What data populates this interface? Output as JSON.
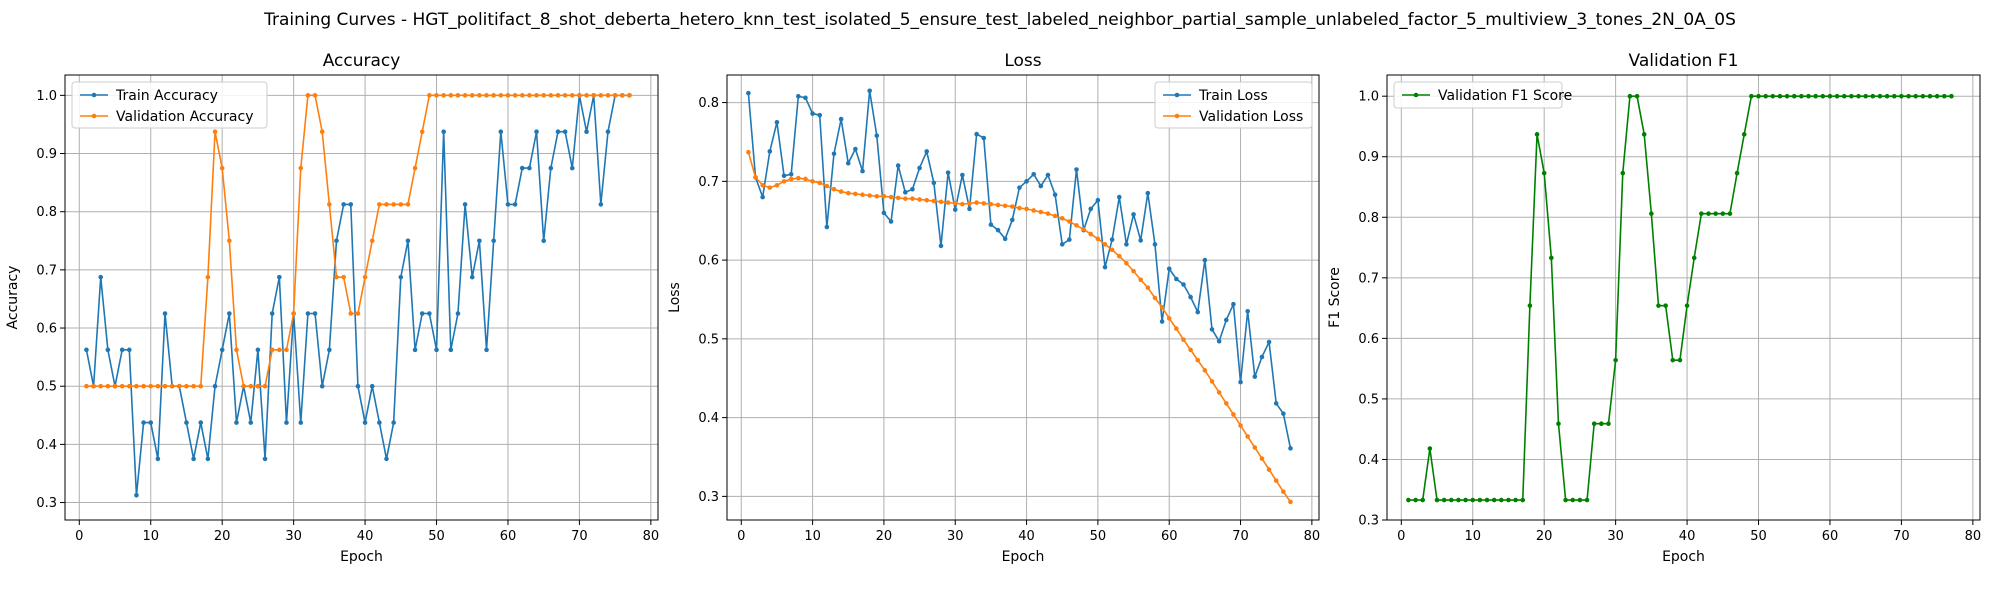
{
  "figure": {
    "suptitle": "Training Curves - HGT_politifact_8_shot_deberta_hetero_knn_test_isolated_5_ensure_test_labeled_neighbor_partial_sample_unlabeled_factor_5_multiview_3_tones_2N_0A_0S"
  },
  "chart_data": [
    {
      "type": "line",
      "title": "Accuracy",
      "xlabel": "Epoch",
      "ylabel": "Accuracy",
      "xlim": [
        -2,
        81
      ],
      "ylim": [
        0.27,
        1.035
      ],
      "xticks": [
        0,
        10,
        20,
        30,
        40,
        50,
        60,
        70,
        80
      ],
      "yticks": [
        0.3,
        0.4,
        0.5,
        0.6,
        0.7,
        0.8,
        0.9,
        1.0
      ],
      "ytick_labels": [
        "0.3",
        "0.4",
        "0.5",
        "0.6",
        "0.7",
        "0.8",
        "0.9",
        "1.0"
      ],
      "grid": true,
      "legend_position": "upper-left",
      "x": [
        1,
        2,
        3,
        4,
        5,
        6,
        7,
        8,
        9,
        10,
        11,
        12,
        13,
        14,
        15,
        16,
        17,
        18,
        19,
        20,
        21,
        22,
        23,
        24,
        25,
        26,
        27,
        28,
        29,
        30,
        31,
        32,
        33,
        34,
        35,
        36,
        37,
        38,
        39,
        40,
        41,
        42,
        43,
        44,
        45,
        46,
        47,
        48,
        49,
        50,
        51,
        52,
        53,
        54,
        55,
        56,
        57,
        58,
        59,
        60,
        61,
        62,
        63,
        64,
        65,
        66,
        67,
        68,
        69,
        70,
        71,
        72,
        73,
        74,
        75,
        76,
        77
      ],
      "series": [
        {
          "name": "Train Accuracy",
          "color": "#1f77b4",
          "values": [
            0.5625,
            0.5,
            0.6875,
            0.5625,
            0.5,
            0.5625,
            0.5625,
            0.3125,
            0.4375,
            0.4375,
            0.375,
            0.625,
            0.5,
            0.5,
            0.4375,
            0.375,
            0.4375,
            0.375,
            0.5,
            0.5625,
            0.625,
            0.4375,
            0.5,
            0.4375,
            0.5625,
            0.375,
            0.625,
            0.6875,
            0.4375,
            0.625,
            0.4375,
            0.625,
            0.625,
            0.5,
            0.5625,
            0.75,
            0.8125,
            0.8125,
            0.5,
            0.4375,
            0.5,
            0.4375,
            0.375,
            0.4375,
            0.6875,
            0.75,
            0.5625,
            0.625,
            0.625,
            0.5625,
            0.9375,
            0.5625,
            0.625,
            0.8125,
            0.6875,
            0.75,
            0.5625,
            0.75,
            0.9375,
            0.8125,
            0.8125,
            0.875,
            0.875,
            0.9375,
            0.75,
            0.875,
            0.9375,
            0.9375,
            0.875,
            1.0,
            0.9375,
            1.0,
            0.8125,
            0.9375,
            1.0,
            1.0,
            1.0
          ]
        },
        {
          "name": "Validation Accuracy",
          "color": "#ff7f0e",
          "values": [
            0.5,
            0.5,
            0.5,
            0.5,
            0.5,
            0.5,
            0.5,
            0.5,
            0.5,
            0.5,
            0.5,
            0.5,
            0.5,
            0.5,
            0.5,
            0.5,
            0.5,
            0.6875,
            0.9375,
            0.875,
            0.75,
            0.5625,
            0.5,
            0.5,
            0.5,
            0.5,
            0.5625,
            0.5625,
            0.5625,
            0.625,
            0.875,
            1.0,
            1.0,
            0.9375,
            0.8125,
            0.6875,
            0.6875,
            0.625,
            0.625,
            0.6875,
            0.75,
            0.8125,
            0.8125,
            0.8125,
            0.8125,
            0.8125,
            0.875,
            0.9375,
            1.0,
            1.0,
            1.0,
            1.0,
            1.0,
            1.0,
            1.0,
            1.0,
            1.0,
            1.0,
            1.0,
            1.0,
            1.0,
            1.0,
            1.0,
            1.0,
            1.0,
            1.0,
            1.0,
            1.0,
            1.0,
            1.0,
            1.0,
            1.0,
            1.0,
            1.0,
            1.0,
            1.0,
            1.0
          ]
        }
      ]
    },
    {
      "type": "line",
      "title": "Loss",
      "xlabel": "Epoch",
      "ylabel": "Loss",
      "xlim": [
        -2,
        81
      ],
      "ylim": [
        0.27,
        0.835
      ],
      "xticks": [
        0,
        10,
        20,
        30,
        40,
        50,
        60,
        70,
        80
      ],
      "yticks": [
        0.3,
        0.4,
        0.5,
        0.6,
        0.7,
        0.8
      ],
      "ytick_labels": [
        "0.3",
        "0.4",
        "0.5",
        "0.6",
        "0.7",
        "0.8"
      ],
      "grid": true,
      "legend_position": "upper-right",
      "x": [
        1,
        2,
        3,
        4,
        5,
        6,
        7,
        8,
        9,
        10,
        11,
        12,
        13,
        14,
        15,
        16,
        17,
        18,
        19,
        20,
        21,
        22,
        23,
        24,
        25,
        26,
        27,
        28,
        29,
        30,
        31,
        32,
        33,
        34,
        35,
        36,
        37,
        38,
        39,
        40,
        41,
        42,
        43,
        44,
        45,
        46,
        47,
        48,
        49,
        50,
        51,
        52,
        53,
        54,
        55,
        56,
        57,
        58,
        59,
        60,
        61,
        62,
        63,
        64,
        65,
        66,
        67,
        68,
        69,
        70,
        71,
        72,
        73,
        74,
        75,
        76,
        77
      ],
      "series": [
        {
          "name": "Train Loss",
          "color": "#1f77b4",
          "values": [
            0.812,
            0.705,
            0.68,
            0.738,
            0.775,
            0.707,
            0.709,
            0.808,
            0.806,
            0.786,
            0.784,
            0.642,
            0.735,
            0.779,
            0.723,
            0.741,
            0.713,
            0.815,
            0.758,
            0.66,
            0.649,
            0.72,
            0.686,
            0.69,
            0.717,
            0.738,
            0.698,
            0.618,
            0.711,
            0.664,
            0.708,
            0.665,
            0.76,
            0.755,
            0.645,
            0.638,
            0.627,
            0.651,
            0.692,
            0.7,
            0.709,
            0.694,
            0.708,
            0.683,
            0.62,
            0.626,
            0.715,
            0.638,
            0.665,
            0.676,
            0.591,
            0.626,
            0.68,
            0.62,
            0.658,
            0.625,
            0.685,
            0.62,
            0.522,
            0.589,
            0.576,
            0.569,
            0.553,
            0.534,
            0.6,
            0.512,
            0.497,
            0.524,
            0.544,
            0.445,
            0.535,
            0.452,
            0.477,
            0.496,
            0.418,
            0.405,
            0.361
          ]
        },
        {
          "name": "Validation Loss",
          "color": "#ff7f0e",
          "values": [
            0.737,
            0.705,
            0.695,
            0.692,
            0.695,
            0.7,
            0.703,
            0.704,
            0.703,
            0.7,
            0.698,
            0.694,
            0.69,
            0.687,
            0.685,
            0.684,
            0.683,
            0.682,
            0.681,
            0.681,
            0.68,
            0.679,
            0.678,
            0.678,
            0.677,
            0.676,
            0.675,
            0.674,
            0.673,
            0.672,
            0.671,
            0.672,
            0.673,
            0.672,
            0.671,
            0.67,
            0.669,
            0.668,
            0.666,
            0.665,
            0.663,
            0.661,
            0.659,
            0.656,
            0.653,
            0.649,
            0.644,
            0.639,
            0.633,
            0.627,
            0.62,
            0.613,
            0.605,
            0.596,
            0.586,
            0.575,
            0.565,
            0.552,
            0.54,
            0.526,
            0.513,
            0.499,
            0.486,
            0.473,
            0.46,
            0.446,
            0.432,
            0.418,
            0.404,
            0.39,
            0.376,
            0.362,
            0.348,
            0.334,
            0.32,
            0.306,
            0.293
          ]
        }
      ]
    },
    {
      "type": "line",
      "title": "Validation F1",
      "xlabel": "Epoch",
      "ylabel": "F1 Score",
      "xlim": [
        -2,
        81
      ],
      "ylim": [
        0.3,
        1.035
      ],
      "xticks": [
        0,
        10,
        20,
        30,
        40,
        50,
        60,
        70,
        80
      ],
      "yticks": [
        0.3,
        0.4,
        0.5,
        0.6,
        0.7,
        0.8,
        0.9,
        1.0
      ],
      "ytick_labels": [
        "0.3",
        "0.4",
        "0.5",
        "0.6",
        "0.7",
        "0.8",
        "0.9",
        "1.0"
      ],
      "grid": true,
      "legend_position": "upper-left",
      "x": [
        1,
        2,
        3,
        4,
        5,
        6,
        7,
        8,
        9,
        10,
        11,
        12,
        13,
        14,
        15,
        16,
        17,
        18,
        19,
        20,
        21,
        22,
        23,
        24,
        25,
        26,
        27,
        28,
        29,
        30,
        31,
        32,
        33,
        34,
        35,
        36,
        37,
        38,
        39,
        40,
        41,
        42,
        43,
        44,
        45,
        46,
        47,
        48,
        49,
        50,
        51,
        52,
        53,
        54,
        55,
        56,
        57,
        58,
        59,
        60,
        61,
        62,
        63,
        64,
        65,
        66,
        67,
        68,
        69,
        70,
        71,
        72,
        73,
        74,
        75,
        76,
        77
      ],
      "series": [
        {
          "name": "Validation F1 Score",
          "color": "#008000",
          "values": [
            0.333,
            0.333,
            0.333,
            0.418,
            0.333,
            0.333,
            0.333,
            0.333,
            0.333,
            0.333,
            0.333,
            0.333,
            0.333,
            0.333,
            0.333,
            0.333,
            0.333,
            0.654,
            0.937,
            0.873,
            0.733,
            0.459,
            0.333,
            0.333,
            0.333,
            0.333,
            0.459,
            0.459,
            0.459,
            0.564,
            0.873,
            1.0,
            1.0,
            0.937,
            0.806,
            0.654,
            0.654,
            0.564,
            0.564,
            0.654,
            0.733,
            0.806,
            0.806,
            0.806,
            0.806,
            0.806,
            0.873,
            0.937,
            1.0,
            1.0,
            1.0,
            1.0,
            1.0,
            1.0,
            1.0,
            1.0,
            1.0,
            1.0,
            1.0,
            1.0,
            1.0,
            1.0,
            1.0,
            1.0,
            1.0,
            1.0,
            1.0,
            1.0,
            1.0,
            1.0,
            1.0,
            1.0,
            1.0,
            1.0,
            1.0,
            1.0,
            1.0
          ]
        }
      ]
    }
  ]
}
